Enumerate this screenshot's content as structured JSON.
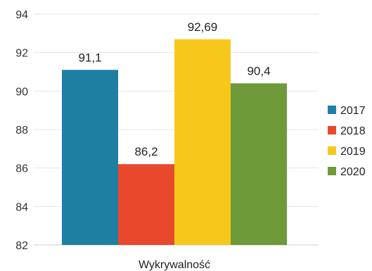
{
  "chart_data": {
    "type": "bar",
    "categories": [
      "Wykrywalność"
    ],
    "xlabel": "Wykrywalność",
    "ylim": [
      82,
      94
    ],
    "y_ticks": [
      "82",
      "84",
      "86",
      "88",
      "90",
      "92",
      "94"
    ],
    "grid": true,
    "legend_position": "right",
    "series": [
      {
        "name": "2017",
        "values": [
          91.1
        ],
        "label": "91,1",
        "color": "#1f7fa3"
      },
      {
        "name": "2018",
        "values": [
          86.2
        ],
        "label": "86,2",
        "color": "#e8492c"
      },
      {
        "name": "2019",
        "values": [
          92.69
        ],
        "label": "92,69",
        "color": "#f6c81c"
      },
      {
        "name": "2020",
        "values": [
          90.4
        ],
        "label": "90,4",
        "color": "#6e9a3a"
      }
    ]
  }
}
